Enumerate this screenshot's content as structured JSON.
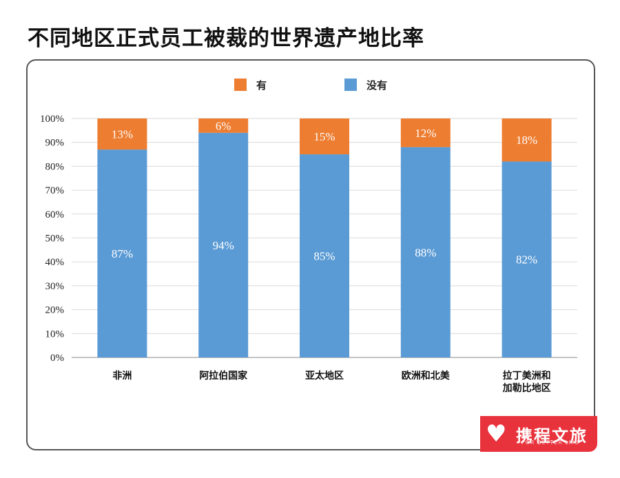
{
  "page": {
    "title": "不同地区正式员工被裁的世界遗产地比率"
  },
  "colors": {
    "you": "#ed7d31",
    "meiyou": "#5b9bd5",
    "grid": "#d9d9d9",
    "frame": "#555555",
    "logo_bg": "#e8323c"
  },
  "logo": {
    "text": "携程文旅",
    "subtext": "FOR BETTER LIFE"
  },
  "chart_data": {
    "type": "bar",
    "stacked": true,
    "categories": [
      "非洲",
      "阿拉伯国家",
      "亚太地区",
      "欧洲和北美",
      "拉丁美洲和加勒比地区"
    ],
    "category_lines": [
      [
        "非洲"
      ],
      [
        "阿拉伯国家"
      ],
      [
        "亚太地区"
      ],
      [
        "欧洲和北美"
      ],
      [
        "拉丁美洲和",
        "加勒比地区"
      ]
    ],
    "series": [
      {
        "name": "没有",
        "values": [
          87,
          94,
          85,
          88,
          82
        ],
        "labels": [
          "87%",
          "94%",
          "85%",
          "88%",
          "82%"
        ],
        "color": "#5b9bd5"
      },
      {
        "name": "有",
        "values": [
          13,
          6,
          15,
          12,
          18
        ],
        "labels": [
          "13%",
          "6%",
          "15%",
          "12%",
          "18%"
        ],
        "color": "#ed7d31"
      }
    ],
    "legend": {
      "position": "top",
      "order": [
        "有",
        "没有"
      ]
    },
    "ylim": [
      0,
      100
    ],
    "yticks": [
      "0%",
      "10%",
      "20%",
      "30%",
      "40%",
      "50%",
      "60%",
      "70%",
      "80%",
      "90%",
      "100%"
    ],
    "grid": true
  }
}
